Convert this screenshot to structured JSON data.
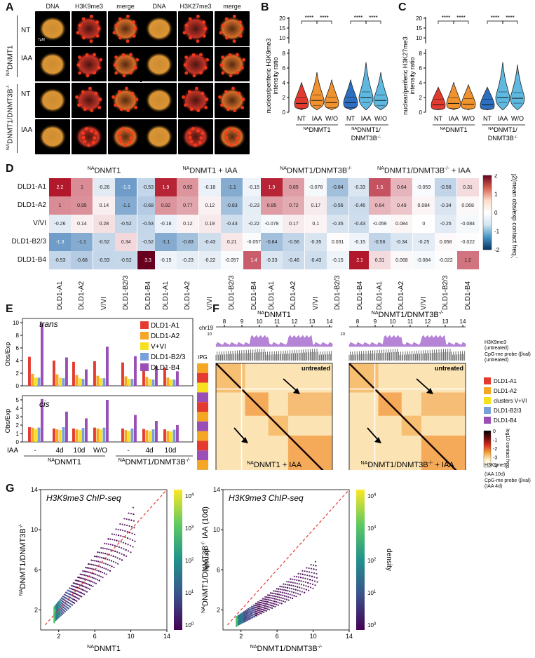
{
  "panel_labels": {
    "a": "A",
    "b": "B",
    "c": "C",
    "d": "D",
    "e": "E",
    "f": "F",
    "g": "G"
  },
  "panel_a": {
    "col_left": [
      "DNA",
      "H3K9me3",
      "merge"
    ],
    "col_right": [
      "DNA",
      "H3K27me3",
      "merge"
    ],
    "row_labels": [
      "NT",
      "IAA",
      "NT",
      "IAA"
    ],
    "group1": "NADNMT1",
    "group2": "NADNMT1/DNMT3B-/-",
    "scale_bar": "7µM"
  },
  "panel_b": {
    "ylabel_line1": "nuclear/periferic H3K9me3",
    "ylabel_line2": "intensity ratio",
    "stars": [
      "****",
      "****",
      "****",
      "****"
    ],
    "xticks": [
      "NT",
      "IAA",
      "W/O",
      "NT",
      "IAA",
      "W/O"
    ],
    "group1": "NADNMT1",
    "group2_l1": "NADNMT1/",
    "group2_l2": "DNMT3B-/-"
  },
  "panel_c": {
    "ylabel_line1": "nuclear/periferic H3K27me3",
    "ylabel_line2": "intensity ratio",
    "stars": [
      "****",
      "****",
      "****",
      "****"
    ],
    "xticks": [
      "NT",
      "IAA",
      "W/O",
      "NT",
      "IAA",
      "W/O"
    ],
    "group1": "NADNMT1",
    "group2_l1": "NADNMT1/",
    "group2_l2": "DNMT3B-/-"
  },
  "panel_d": {
    "titles": [
      "NADNMT1",
      "NADNMT1 + IAA",
      "NADNMT1/DNMT3B-/-",
      "NADNMT1/DNMT3B-/- + IAA"
    ],
    "rows": [
      "DLD1-A1",
      "DLD1-A2",
      "V/VI",
      "DLD1-B2/3",
      "DLD1-B4"
    ],
    "colorbar_label": "log2(mean obs/exp contact freq.)",
    "colorbar_ticks": [
      "2",
      "1",
      "0",
      "-1",
      "-2"
    ]
  },
  "panel_e": {
    "trans_label": "trans",
    "cis_label": "cis",
    "ylabel": "Obs/Exp",
    "xlabel_prefix": "IAA",
    "conditions": [
      "-",
      "4d",
      "10d",
      "W/O",
      "-",
      "4d",
      "10d"
    ],
    "group1": "NADNMT1",
    "group2": "NADNMT1/DNMT3B-/-",
    "legend": [
      "DLD1-A1",
      "DLD1-A2",
      "V+VI",
      "DLD1-B2/3",
      "DLD1-B4"
    ]
  },
  "panel_f": {
    "title_left": "NADNMT1",
    "title_right": "NADNMT1/DNMT3B-/-",
    "chr": "chr19",
    "mb_ticks": [
      "8",
      "9",
      "10",
      "11",
      "12",
      "13",
      "14"
    ],
    "mb_unit": "Mb",
    "track_h3k9": "H3K9me3",
    "track_h3k9_note": "(untreated)",
    "track_cpg": "CpG-me probe (βval)",
    "track_cpg_note": "(untreated)",
    "track_h3k9_bottom": "H3K9me3",
    "track_h3k9_bottom_note": "(IAA 10d)",
    "track_cpg_bottom": "CpG-me probe (βval)",
    "track_cpg_bottom_note": "(IAA 4d)",
    "ipg": "IPG",
    "untreated": "untreated",
    "iaa": "IAA 10d",
    "bottom_left": "NADNMT1 + IAA",
    "bottom_right": "NADNMT1/DNMT3B-/- + IAA",
    "legend": [
      "DLD1-A1",
      "DLD1-A2",
      "clusters V+VI",
      "DLD1-B2/3",
      "DLD1-B4"
    ],
    "colorbar_label": "log10 contact freq.",
    "colorbar_ticks": [
      "0",
      "-1",
      "-2",
      "-3",
      "-4"
    ],
    "y10": "10",
    "y1": "1"
  },
  "panel_g": {
    "title": "H3K9me3 ChIP-seq",
    "left_xlabel": "NADNMT1",
    "left_ylabel": "NADNMT1/DNMT3B-/-",
    "right_xlabel": "NADNMT1/DNMT3B-/-",
    "right_ylabel": "NADNMT1/DNMT3B-/- IAA (10d)",
    "ticks": [
      "2",
      "6",
      "10",
      "14"
    ],
    "density_label": "density",
    "density_ticks": [
      "10^4",
      "10^3",
      "10^2",
      "10^1",
      "10^0"
    ]
  },
  "chart_data": [
    {
      "type": "heatmap",
      "title": "NADNMT1",
      "rows": [
        "DLD1-A1",
        "DLD1-A2",
        "V/VI",
        "DLD1-B2/3",
        "DLD1-B4"
      ],
      "cols": [
        "DLD1-A1",
        "DLD1-A2",
        "V/VI",
        "DLD1-B2/3",
        "DLD1-B4"
      ],
      "values": [
        [
          2.2,
          1,
          -0.26,
          -1.3,
          -0.53
        ],
        [
          1,
          0.95,
          0.14,
          -1.1,
          -0.68
        ],
        [
          -0.26,
          0.14,
          0.28,
          -0.52,
          -0.53
        ],
        [
          -1.3,
          -1.1,
          -0.52,
          0.34,
          -0.52
        ],
        [
          -0.53,
          -0.68,
          -0.53,
          -0.52,
          3.3
        ]
      ]
    },
    {
      "type": "heatmap",
      "title": "NADNMT1 + IAA",
      "rows": [
        "DLD1-A1",
        "DLD1-A2",
        "V/VI",
        "DLD1-B2/3",
        "DLD1-B4"
      ],
      "cols": [
        "DLD1-A1",
        "DLD1-A2",
        "V/VI",
        "DLD1-B2/3",
        "DLD1-B4"
      ],
      "values": [
        [
          1.9,
          0.92,
          -0.18,
          -1.1,
          -0.15
        ],
        [
          0.92,
          0.77,
          0.12,
          -0.83,
          -0.23
        ],
        [
          -0.18,
          0.12,
          0.19,
          -0.43,
          -0.22
        ],
        [
          -1.1,
          -0.83,
          -0.43,
          0.21,
          -0.057
        ],
        [
          -0.15,
          -0.23,
          -0.22,
          -0.057,
          1.4
        ]
      ]
    },
    {
      "type": "heatmap",
      "title": "NADNMT1/DNMT3B-/-",
      "rows": [
        "DLD1-A1",
        "DLD1-A2",
        "V/VI",
        "DLD1-B2/3",
        "DLD1-B4"
      ],
      "cols": [
        "DLD1-A1",
        "DLD1-A2",
        "V/VI",
        "DLD1-B2/3",
        "DLD1-B4"
      ],
      "values": [
        [
          1.9,
          0.85,
          -0.078,
          -0.84,
          -0.33
        ],
        [
          0.85,
          0.72,
          0.17,
          -0.56,
          -0.46
        ],
        [
          -0.078,
          0.17,
          0.1,
          -0.35,
          -0.43
        ],
        [
          -0.84,
          -0.56,
          -0.35,
          0.031,
          -0.15
        ],
        [
          -0.33,
          -0.46,
          -0.43,
          -0.15,
          2.1
        ]
      ]
    },
    {
      "type": "heatmap",
      "title": "NADNMT1/DNMT3B-/- + IAA",
      "rows": [
        "DLD1-A1",
        "DLD1-A2",
        "V/VI",
        "DLD1-B2/3",
        "DLD1-B4"
      ],
      "cols": [
        "DLD1-A1",
        "DLD1-A2",
        "V/VI",
        "DLD1-B2/3",
        "DLD1-B4"
      ],
      "values": [
        [
          1.5,
          0.64,
          -0.059,
          -0.56,
          0.31
        ],
        [
          0.64,
          0.49,
          0.084,
          -0.34,
          0.068
        ],
        [
          -0.059,
          0.084,
          0,
          -0.25,
          -0.084
        ],
        [
          -0.56,
          -0.34,
          -0.25,
          0.058,
          -0.022
        ],
        [
          0.31,
          0.068,
          -0.084,
          -0.022,
          1.2
        ]
      ]
    },
    {
      "type": "bar",
      "title": "trans",
      "categories": [
        "-",
        "4d",
        "10d",
        "W/O",
        "-",
        "4d",
        "10d"
      ],
      "ylim": [
        0,
        10
      ],
      "series": [
        {
          "name": "DLD1-A1",
          "values": [
            4.6,
            4.0,
            3.8,
            3.9,
            3.7,
            3.3,
            2.9
          ]
        },
        {
          "name": "DLD1-A2",
          "values": [
            1.9,
            1.8,
            1.7,
            1.6,
            1.5,
            1.4,
            1.3
          ]
        },
        {
          "name": "V+VI",
          "values": [
            1.3,
            1.3,
            1.2,
            1.2,
            1.1,
            1.1,
            1.0
          ]
        },
        {
          "name": "DLD1-B2/3",
          "values": [
            1.3,
            1.2,
            1.1,
            1.2,
            1.1,
            1.0,
            1.0
          ]
        },
        {
          "name": "DLD1-B4",
          "values": [
            9.9,
            4.5,
            2.6,
            6.2,
            4.7,
            3.1,
            2.3
          ]
        }
      ]
    },
    {
      "type": "bar",
      "title": "cis",
      "categories": [
        "-",
        "4d",
        "10d",
        "W/O",
        "-",
        "4d",
        "10d"
      ],
      "ylim": [
        0,
        5
      ],
      "series": [
        {
          "name": "DLD1-A1",
          "values": [
            1.75,
            1.6,
            1.6,
            1.7,
            1.6,
            1.55,
            1.5
          ]
        },
        {
          "name": "DLD1-A2",
          "values": [
            1.7,
            1.5,
            1.5,
            1.6,
            1.4,
            1.4,
            1.3
          ]
        },
        {
          "name": "V+VI",
          "values": [
            1.55,
            1.4,
            1.4,
            1.5,
            1.3,
            1.3,
            1.25
          ]
        },
        {
          "name": "DLD1-B2/3",
          "values": [
            1.7,
            1.75,
            1.65,
            1.7,
            1.6,
            1.5,
            1.45
          ]
        },
        {
          "name": "DLD1-B4",
          "values": [
            5.1,
            3.6,
            2.8,
            5.0,
            3.2,
            2.5,
            2.0
          ]
        }
      ]
    }
  ]
}
